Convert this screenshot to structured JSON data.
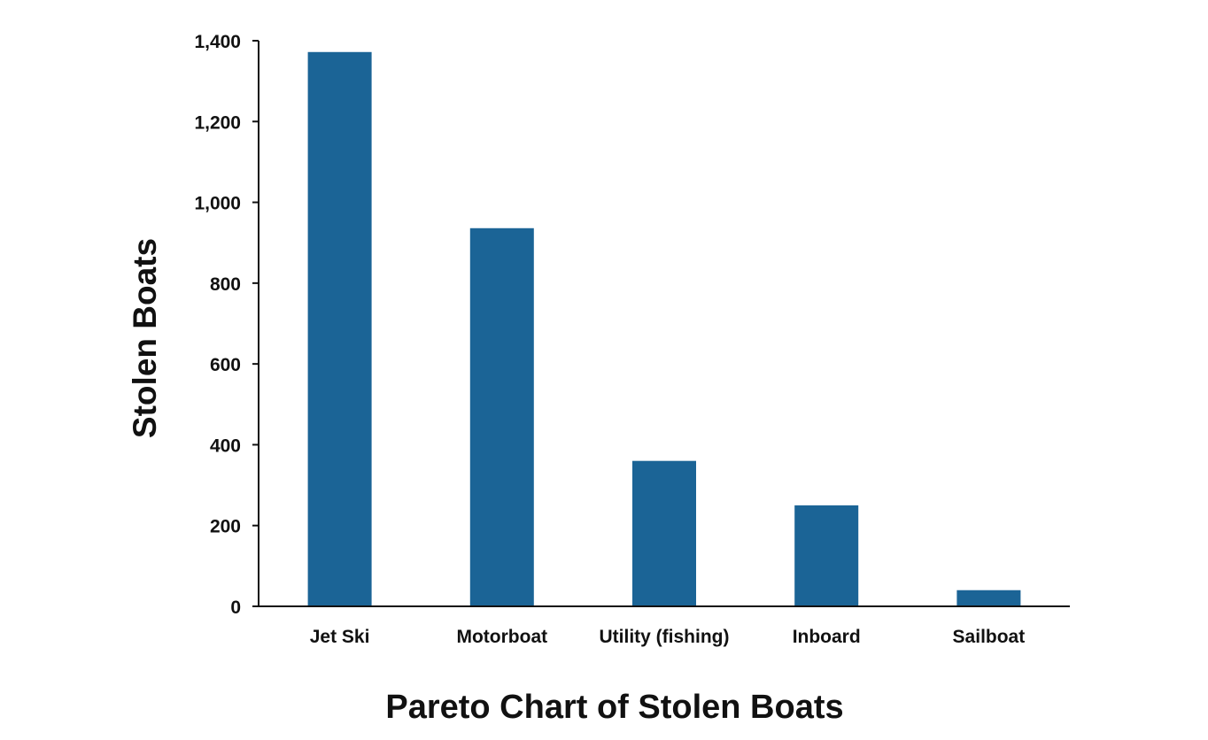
{
  "chart_data": {
    "type": "bar",
    "title": "Pareto Chart of Stolen Boats",
    "xlabel": "",
    "ylabel": "Stolen Boats",
    "categories": [
      "Jet Ski",
      "Motorboat",
      "Utility (fishing)",
      "Inboard",
      "Sailboat"
    ],
    "values": [
      1372,
      936,
      360,
      250,
      40
    ],
    "ylim": [
      0,
      1400
    ],
    "yticks": [
      0,
      200,
      400,
      600,
      800,
      1000,
      1200,
      1400
    ],
    "ytick_labels": [
      "0",
      "200",
      "400",
      "600",
      "800",
      "1,000",
      "1,200",
      "1,400"
    ],
    "grid": false,
    "legend": "none",
    "bar_color": "#1b6496",
    "axis_color": "#111111"
  }
}
